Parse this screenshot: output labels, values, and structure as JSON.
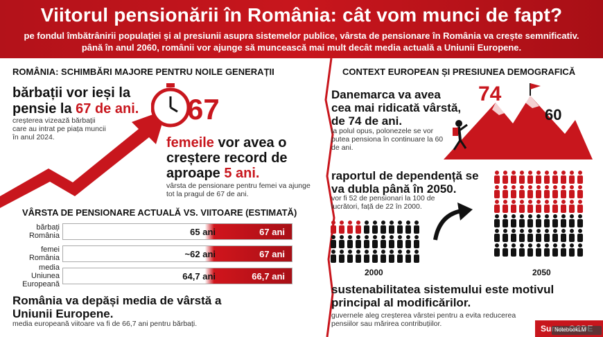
{
  "header": {
    "title": "Viitorul pensionării în România: cât vom munci de fapt?",
    "subtitle": "pe fondul îmbătrânirii populației și al presiunii asupra sistemelor publice, vârsta de pensionare în România va crește semnificativ. până în anul 2060, românii vor ajunge să muncească mai mult decât media actuală a Uniunii Europene."
  },
  "left": {
    "section_title": "ROMÂNIA: SCHIMBĂRI MAJORE PENTRU NOILE GENERAȚII",
    "men": {
      "title_a": "bărbații vor ieși la pensie la ",
      "title_b": "67 de ani.",
      "desc": "creșterea vizează bărbații care au intrat pe piața muncii în anul 2024."
    },
    "big_number": "67",
    "women": {
      "title_a": "femeile",
      "title_b": " vor avea o creștere record de aproape ",
      "title_c": "5 ani.",
      "desc": "vârsta de pensionare pentru femei va ajunge tot la pragul de 67 de ani."
    },
    "comparison_title": "VÂRSTA DE PENSIONARE ACTUALĂ VS. VIITOARE (ESTIMATĂ)",
    "bars": [
      {
        "label": "bărbați România",
        "current": "65 ani",
        "future": "67 ani"
      },
      {
        "label": "femei România",
        "current": "~62 ani",
        "future": "67 ani"
      },
      {
        "label": "media Uniunea Europeană",
        "current": "64,7 ani",
        "future": "66,7 ani"
      }
    ],
    "eu": {
      "title": "România va depăși media de vârstă a Uniunii Europene.",
      "desc": "media europeană viitoare va fi de 66,7 ani pentru bărbați."
    }
  },
  "right": {
    "section_title": "CONTEXT EUROPEAN ȘI PRESIUNEA DEMOGRAFICĂ",
    "denmark": {
      "title": "Danemarca va avea cea mai ridicată vârstă, de 74 de ani.",
      "desc": "la polul opus, polonezele se vor putea pensiona în continuare la 60 de ani."
    },
    "peak_high": "74",
    "peak_low": "60",
    "dependency": {
      "title": "raportul de dependență se va dubla până în 2050.",
      "desc": "vor fi 52 de pensionari la 100 de lucrători, față de 22 în 2000."
    },
    "year_a": "2000",
    "year_b": "2050",
    "sustain": {
      "title": "sustenabilitatea sistemului este motivul principal al modificărilor.",
      "desc": "guvernele aleg creșterea vârstei pentru a evita reducerea pensiilor sau mărirea contribuțiilor."
    }
  },
  "source": "Sursa: OCDE",
  "watermark": "NotebookLM",
  "colors": {
    "accent": "#c8161d",
    "dark": "#111111"
  }
}
